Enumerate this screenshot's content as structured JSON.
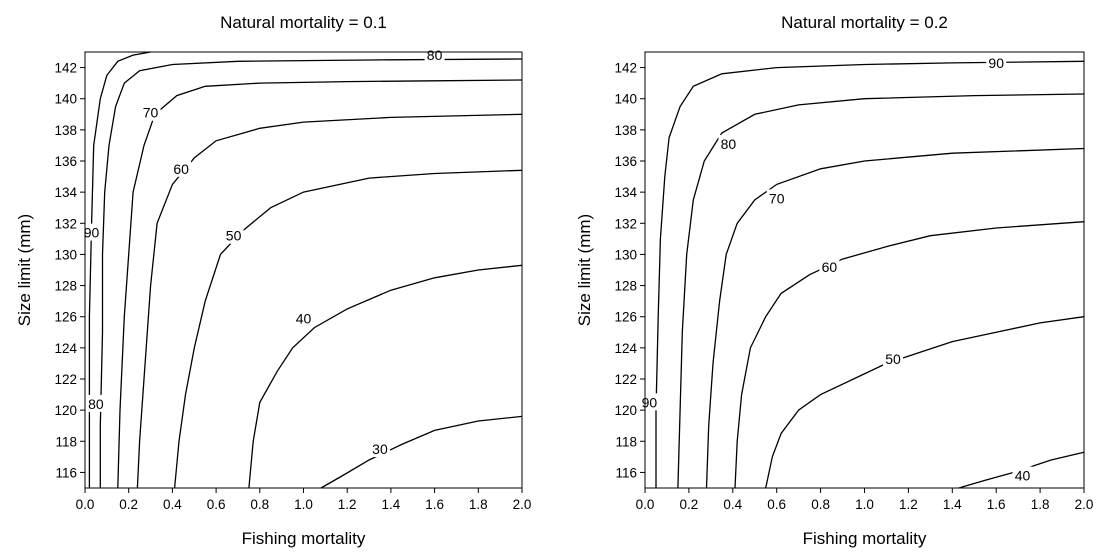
{
  "chart_data": [
    {
      "type": "contour",
      "title": "Natural mortality = 0.1",
      "xlabel": "Fishing mortality",
      "ylabel": "Size limit (mm)",
      "xlim": [
        0,
        2
      ],
      "ylim": [
        115,
        143
      ],
      "xticks": [
        "0.0",
        "0.2",
        "0.4",
        "0.6",
        "0.8",
        "1.0",
        "1.2",
        "1.4",
        "1.6",
        "1.8",
        "2.0"
      ],
      "yticks": [
        "116",
        "118",
        "120",
        "122",
        "124",
        "126",
        "128",
        "130",
        "132",
        "134",
        "136",
        "138",
        "140",
        "142"
      ],
      "grid": false,
      "contours": [
        {
          "level": "90",
          "label_at": [
            0.03,
            131.4
          ],
          "points": [
            [
              0.02,
              115
            ],
            [
              0.02,
              120
            ],
            [
              0.02,
              126
            ],
            [
              0.03,
              132
            ],
            [
              0.04,
              137
            ],
            [
              0.07,
              140
            ],
            [
              0.1,
              141.5
            ],
            [
              0.15,
              142.4
            ],
            [
              0.22,
              142.8
            ],
            [
              0.3,
              143
            ]
          ]
        },
        {
          "level": "80",
          "label_at": [
            0.05,
            120.4
          ],
          "label2": "80",
          "label2_at": [
            1.6,
            142.8
          ],
          "points": [
            [
              0.07,
              115
            ],
            [
              0.07,
              119
            ],
            [
              0.08,
              125
            ],
            [
              0.08,
              130
            ],
            [
              0.09,
              134
            ],
            [
              0.11,
              137
            ],
            [
              0.14,
              139.5
            ],
            [
              0.18,
              141
            ],
            [
              0.25,
              141.8
            ],
            [
              0.4,
              142.2
            ],
            [
              0.7,
              142.4
            ],
            [
              1.0,
              142.45
            ],
            [
              1.4,
              142.5
            ],
            [
              2.0,
              142.55
            ]
          ]
        },
        {
          "level": "70",
          "label_at": [
            0.3,
            139.1
          ],
          "points": [
            [
              0.15,
              115
            ],
            [
              0.16,
              120
            ],
            [
              0.18,
              126
            ],
            [
              0.2,
              130
            ],
            [
              0.22,
              134
            ],
            [
              0.27,
              137
            ],
            [
              0.32,
              139
            ],
            [
              0.42,
              140.2
            ],
            [
              0.55,
              140.8
            ],
            [
              0.8,
              141
            ],
            [
              1.2,
              141.1
            ],
            [
              1.6,
              141.15
            ],
            [
              2.0,
              141.2
            ]
          ]
        },
        {
          "level": "60",
          "label_at": [
            0.44,
            135.5
          ],
          "points": [
            [
              0.24,
              115
            ],
            [
              0.25,
              118
            ],
            [
              0.27,
              122
            ],
            [
              0.3,
              128
            ],
            [
              0.33,
              132
            ],
            [
              0.4,
              134.5
            ],
            [
              0.5,
              136.2
            ],
            [
              0.6,
              137.3
            ],
            [
              0.8,
              138.1
            ],
            [
              1.0,
              138.5
            ],
            [
              1.4,
              138.8
            ],
            [
              2.0,
              139
            ]
          ]
        },
        {
          "level": "50",
          "label_at": [
            0.68,
            131.2
          ],
          "points": [
            [
              0.41,
              115
            ],
            [
              0.43,
              118
            ],
            [
              0.46,
              121
            ],
            [
              0.5,
              124
            ],
            [
              0.55,
              127
            ],
            [
              0.62,
              130
            ],
            [
              0.72,
              131.5
            ],
            [
              0.85,
              133
            ],
            [
              1.0,
              134
            ],
            [
              1.3,
              134.9
            ],
            [
              1.6,
              135.2
            ],
            [
              2.0,
              135.4
            ]
          ]
        },
        {
          "level": "40",
          "label_at": [
            1.0,
            125.9
          ],
          "points": [
            [
              0.75,
              115
            ],
            [
              0.77,
              118
            ],
            [
              0.8,
              120.5
            ],
            [
              0.88,
              122.5
            ],
            [
              0.95,
              124
            ],
            [
              1.05,
              125.3
            ],
            [
              1.2,
              126.5
            ],
            [
              1.4,
              127.7
            ],
            [
              1.6,
              128.5
            ],
            [
              1.8,
              129
            ],
            [
              2.0,
              129.3
            ]
          ]
        },
        {
          "level": "30",
          "label_at": [
            1.35,
            117.5
          ],
          "points": [
            [
              1.08,
              115
            ],
            [
              1.18,
              115.8
            ],
            [
              1.3,
              116.8
            ],
            [
              1.45,
              117.8
            ],
            [
              1.6,
              118.7
            ],
            [
              1.8,
              119.3
            ],
            [
              2.0,
              119.6
            ]
          ]
        }
      ]
    },
    {
      "type": "contour",
      "title": "Natural mortality = 0.2",
      "xlabel": "Fishing mortality",
      "ylabel": "Size limit (mm)",
      "xlim": [
        0,
        2
      ],
      "ylim": [
        115,
        143
      ],
      "xticks": [
        "0.0",
        "0.2",
        "0.4",
        "0.6",
        "0.8",
        "1.0",
        "1.2",
        "1.4",
        "1.6",
        "1.8",
        "2.0"
      ],
      "yticks": [
        "116",
        "118",
        "120",
        "122",
        "124",
        "126",
        "128",
        "130",
        "132",
        "134",
        "136",
        "138",
        "140",
        "142"
      ],
      "grid": false,
      "contours": [
        {
          "level": "90",
          "label_at": [
            0.02,
            120.5
          ],
          "label2": "90",
          "label2_at": [
            1.6,
            142.3
          ],
          "points": [
            [
              0.05,
              115
            ],
            [
              0.05,
              120
            ],
            [
              0.06,
              126
            ],
            [
              0.07,
              131
            ],
            [
              0.09,
              135
            ],
            [
              0.11,
              137.5
            ],
            [
              0.16,
              139.5
            ],
            [
              0.22,
              140.8
            ],
            [
              0.35,
              141.6
            ],
            [
              0.6,
              142
            ],
            [
              1.0,
              142.2
            ],
            [
              1.4,
              142.3
            ],
            [
              2.0,
              142.4
            ]
          ]
        },
        {
          "level": "80",
          "label_at": [
            0.38,
            137.1
          ],
          "points": [
            [
              0.15,
              115
            ],
            [
              0.16,
              120
            ],
            [
              0.17,
              125
            ],
            [
              0.19,
              130
            ],
            [
              0.22,
              133.5
            ],
            [
              0.27,
              136
            ],
            [
              0.35,
              137.8
            ],
            [
              0.5,
              139
            ],
            [
              0.7,
              139.6
            ],
            [
              1.0,
              140
            ],
            [
              1.5,
              140.2
            ],
            [
              2.0,
              140.3
            ]
          ]
        },
        {
          "level": "70",
          "label_at": [
            0.6,
            133.6
          ],
          "points": [
            [
              0.28,
              115
            ],
            [
              0.29,
              119
            ],
            [
              0.31,
              123
            ],
            [
              0.34,
              127
            ],
            [
              0.37,
              130
            ],
            [
              0.42,
              132
            ],
            [
              0.5,
              133.5
            ],
            [
              0.6,
              134.5
            ],
            [
              0.8,
              135.5
            ],
            [
              1.0,
              136
            ],
            [
              1.4,
              136.5
            ],
            [
              2.0,
              136.8
            ]
          ]
        },
        {
          "level": "60",
          "label_at": [
            0.84,
            129.2
          ],
          "points": [
            [
              0.41,
              115
            ],
            [
              0.42,
              118
            ],
            [
              0.44,
              121
            ],
            [
              0.48,
              124
            ],
            [
              0.55,
              126
            ],
            [
              0.62,
              127.5
            ],
            [
              0.75,
              128.7
            ],
            [
              0.9,
              129.7
            ],
            [
              1.1,
              130.5
            ],
            [
              1.3,
              131.2
            ],
            [
              1.6,
              131.7
            ],
            [
              2.0,
              132.1
            ]
          ]
        },
        {
          "level": "50",
          "label_at": [
            1.13,
            123.3
          ],
          "points": [
            [
              0.55,
              115
            ],
            [
              0.58,
              117
            ],
            [
              0.62,
              118.5
            ],
            [
              0.7,
              120
            ],
            [
              0.8,
              121
            ],
            [
              0.95,
              122
            ],
            [
              1.1,
              123
            ],
            [
              1.25,
              123.7
            ],
            [
              1.4,
              124.4
            ],
            [
              1.6,
              125
            ],
            [
              1.8,
              125.6
            ],
            [
              2.0,
              126
            ]
          ]
        },
        {
          "level": "40",
          "label_at": [
            1.72,
            115.8
          ],
          "points": [
            [
              1.43,
              115
            ],
            [
              1.55,
              115.5
            ],
            [
              1.68,
              116
            ],
            [
              1.85,
              116.8
            ],
            [
              2.0,
              117.3
            ]
          ]
        }
      ]
    }
  ]
}
